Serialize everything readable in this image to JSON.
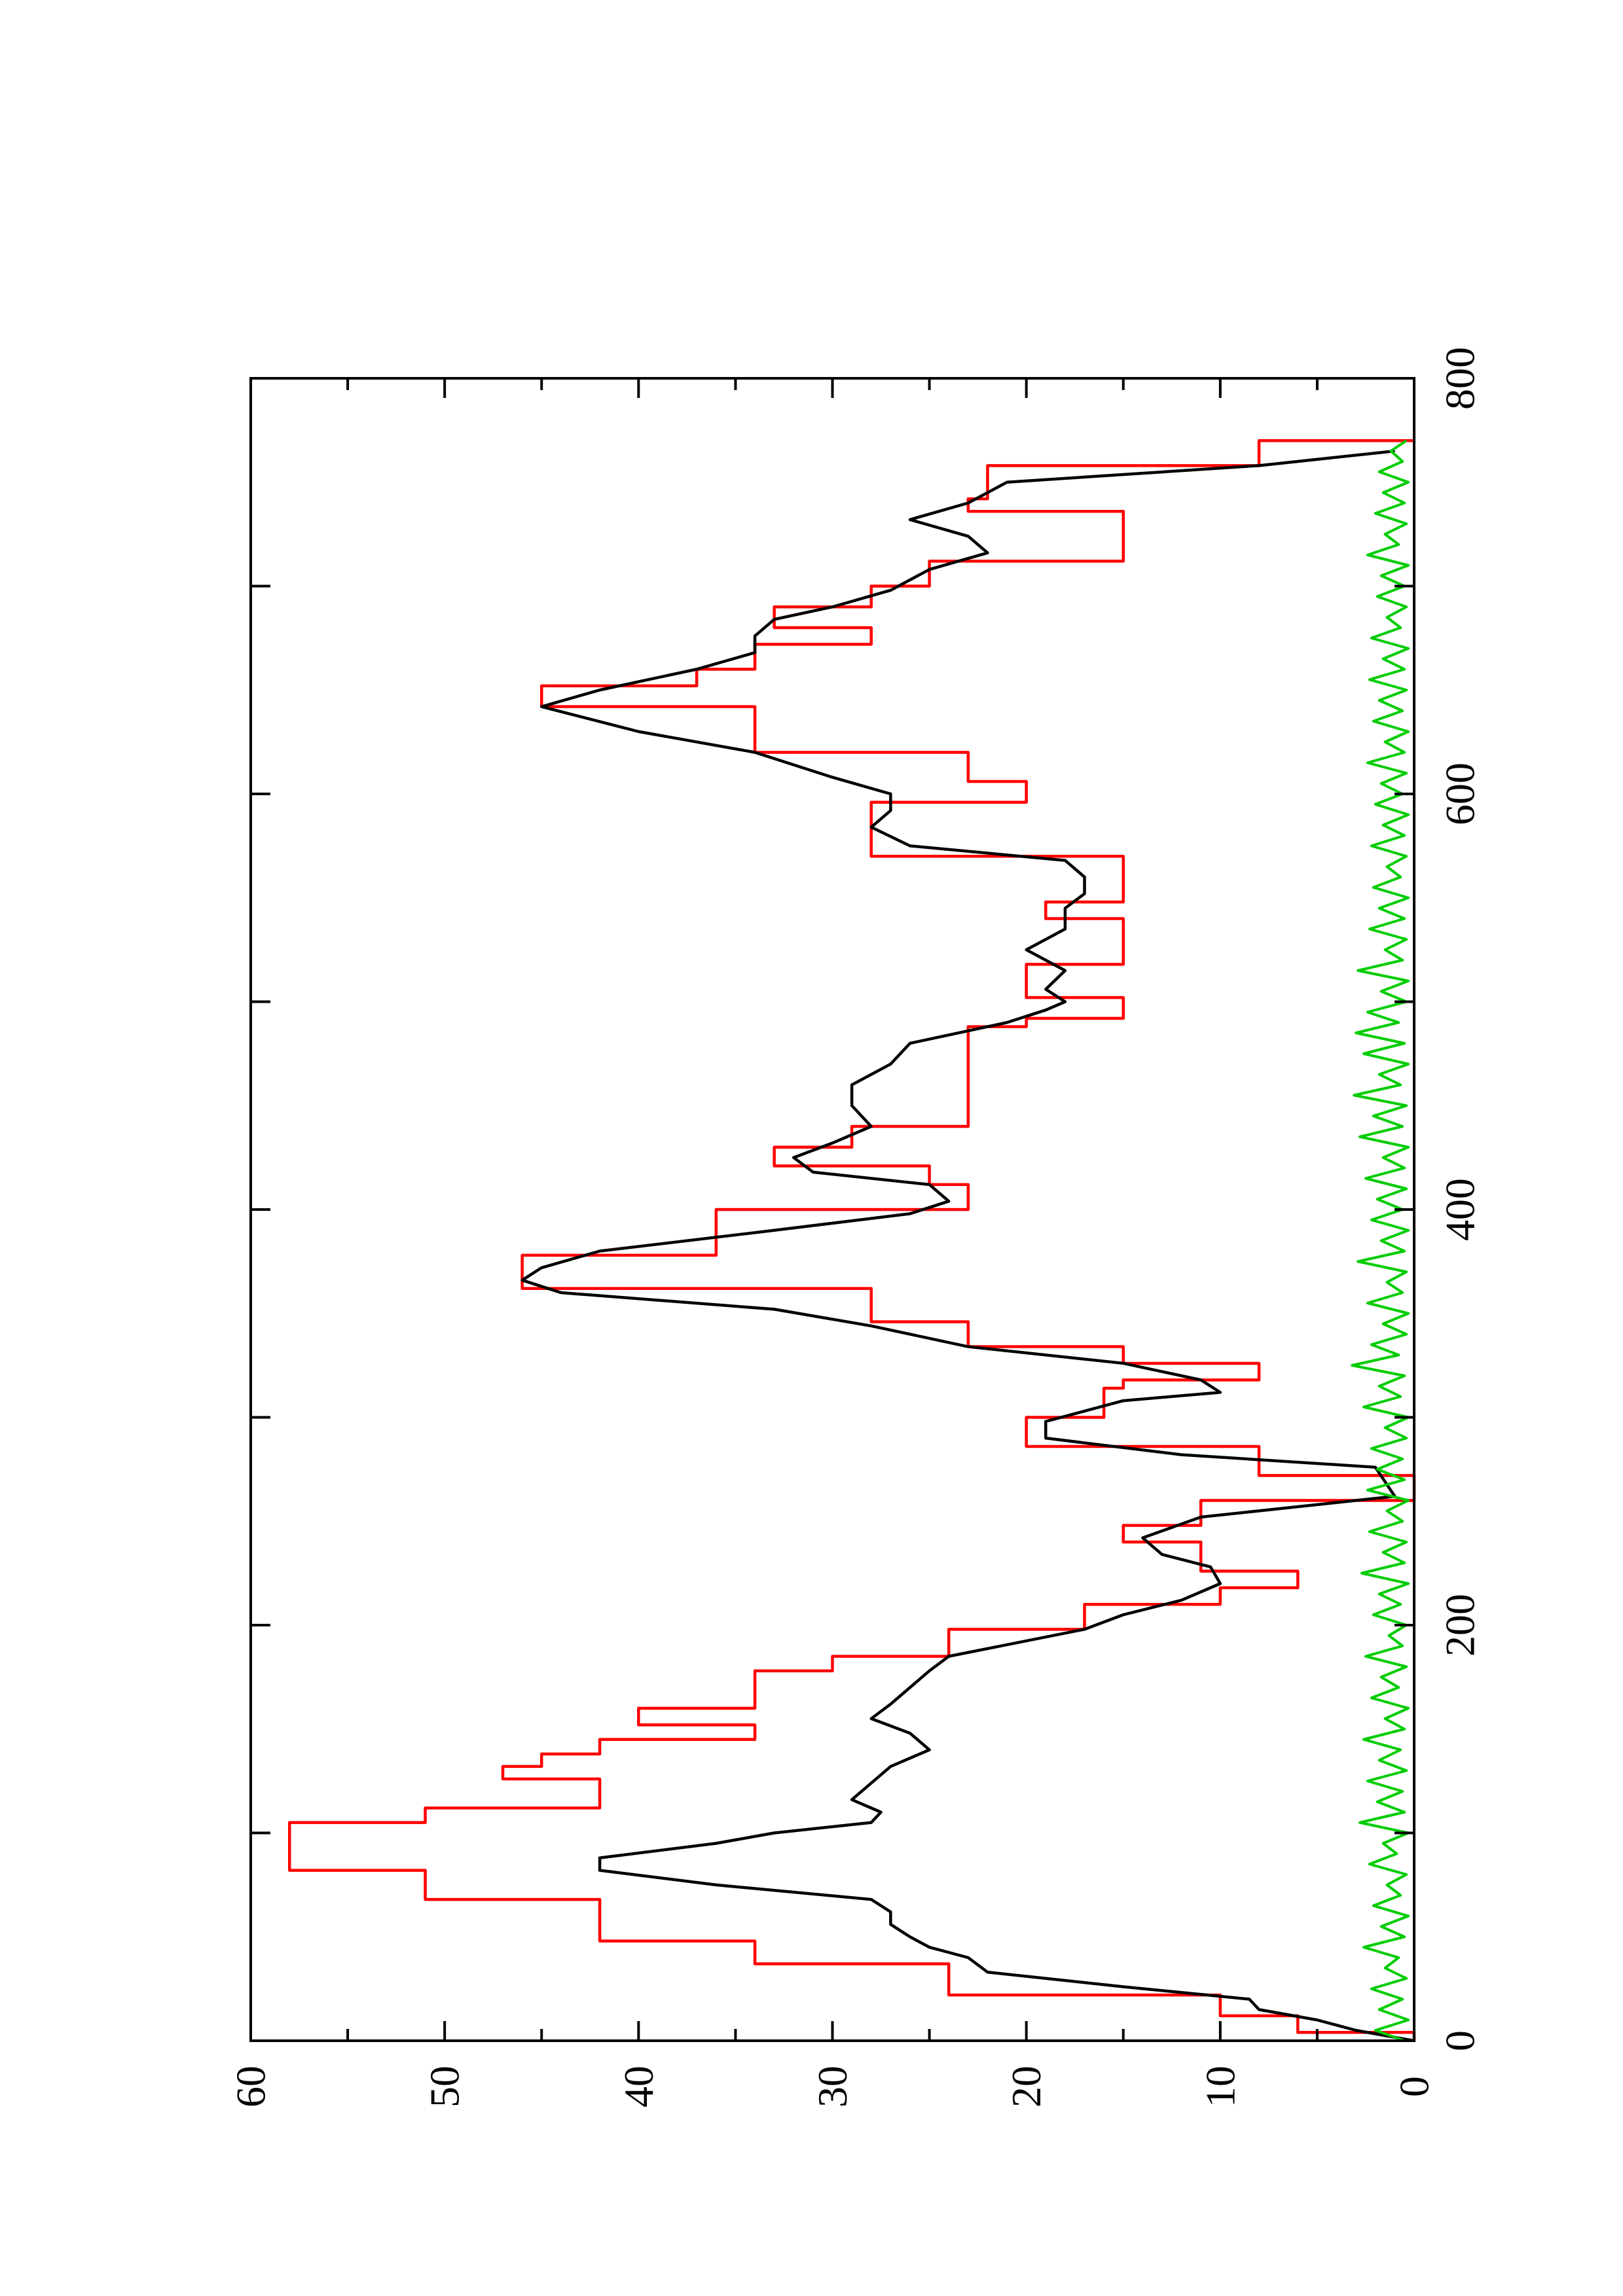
{
  "chart_data": {
    "type": "line",
    "orientation": "rotated-90-counterclockwise",
    "title": "",
    "xlabel": "",
    "ylabel": "",
    "xlim": [
      0,
      800
    ],
    "ylim": [
      0,
      60
    ],
    "x_ticks": [
      "0",
      "200",
      "400",
      "600",
      "800"
    ],
    "y_ticks": [
      "0",
      "10",
      "20",
      "30",
      "40",
      "50",
      "60"
    ],
    "grid": false,
    "legend": "none",
    "series": [
      {
        "color": "#ff0000",
        "style": "step",
        "points": [
          [
            0,
            0
          ],
          [
            4,
            6
          ],
          [
            12,
            10
          ],
          [
            22,
            24
          ],
          [
            37,
            34
          ],
          [
            48,
            42
          ],
          [
            68,
            51
          ],
          [
            82,
            58
          ],
          [
            105,
            51
          ],
          [
            112,
            42
          ],
          [
            126,
            47
          ],
          [
            132,
            45
          ],
          [
            138,
            42
          ],
          [
            145,
            34
          ],
          [
            152,
            40
          ],
          [
            160,
            34
          ],
          [
            178,
            30
          ],
          [
            185,
            24
          ],
          [
            198,
            17
          ],
          [
            210,
            10
          ],
          [
            218,
            6
          ],
          [
            226,
            11
          ],
          [
            240,
            15
          ],
          [
            248,
            11
          ],
          [
            260,
            0
          ],
          [
            272,
            8
          ],
          [
            286,
            20
          ],
          [
            300,
            16
          ],
          [
            314,
            15
          ],
          [
            318,
            8
          ],
          [
            326,
            15
          ],
          [
            334,
            23
          ],
          [
            346,
            28
          ],
          [
            362,
            46
          ],
          [
            378,
            36
          ],
          [
            400,
            23
          ],
          [
            412,
            25
          ],
          [
            421,
            33
          ],
          [
            430,
            29
          ],
          [
            440,
            23
          ],
          [
            488,
            20
          ],
          [
            492,
            15
          ],
          [
            502,
            20
          ],
          [
            518,
            15
          ],
          [
            540,
            19
          ],
          [
            548,
            15
          ],
          [
            570,
            28
          ],
          [
            596,
            20
          ],
          [
            606,
            23
          ],
          [
            620,
            34
          ],
          [
            642,
            45
          ],
          [
            652,
            37
          ],
          [
            660,
            34
          ],
          [
            672,
            28
          ],
          [
            680,
            33
          ],
          [
            690,
            28
          ],
          [
            700,
            25
          ],
          [
            712,
            15
          ],
          [
            736,
            23
          ],
          [
            742,
            22
          ],
          [
            758,
            8
          ],
          [
            770,
            0
          ]
        ]
      },
      {
        "color": "#000000",
        "style": "line",
        "points": [
          [
            0,
            0
          ],
          [
            5,
            3
          ],
          [
            10,
            5
          ],
          [
            15,
            8
          ],
          [
            20,
            8.5
          ],
          [
            26,
            15
          ],
          [
            33,
            22
          ],
          [
            40,
            23
          ],
          [
            45,
            25
          ],
          [
            50,
            26
          ],
          [
            56,
            27
          ],
          [
            62,
            27
          ],
          [
            68,
            28
          ],
          [
            75,
            36
          ],
          [
            82,
            42
          ],
          [
            88,
            42
          ],
          [
            95,
            36
          ],
          [
            100,
            33
          ],
          [
            105,
            28
          ],
          [
            110,
            27.5
          ],
          [
            116,
            29
          ],
          [
            124,
            28
          ],
          [
            132,
            27
          ],
          [
            140,
            25
          ],
          [
            148,
            26
          ],
          [
            155,
            28
          ],
          [
            162,
            27
          ],
          [
            170,
            26
          ],
          [
            178,
            25
          ],
          [
            185,
            24
          ],
          [
            198,
            17
          ],
          [
            205,
            15
          ],
          [
            212,
            12
          ],
          [
            220,
            10
          ],
          [
            228,
            10.5
          ],
          [
            234,
            13
          ],
          [
            242,
            14
          ],
          [
            252,
            11
          ],
          [
            262,
            1
          ],
          [
            276,
            2
          ],
          [
            282,
            12
          ],
          [
            290,
            19
          ],
          [
            298,
            19
          ],
          [
            308,
            15
          ],
          [
            312,
            10
          ],
          [
            318,
            11
          ],
          [
            326,
            15
          ],
          [
            334,
            23
          ],
          [
            344,
            28
          ],
          [
            352,
            33
          ],
          [
            360,
            44
          ],
          [
            366,
            46
          ],
          [
            372,
            45
          ],
          [
            380,
            42
          ],
          [
            390,
            33
          ],
          [
            398,
            26
          ],
          [
            404,
            24
          ],
          [
            412,
            25
          ],
          [
            418,
            31
          ],
          [
            425,
            32
          ],
          [
            432,
            30
          ],
          [
            440,
            28
          ],
          [
            450,
            29
          ],
          [
            460,
            29
          ],
          [
            470,
            27
          ],
          [
            480,
            26
          ],
          [
            490,
            21
          ],
          [
            496,
            19
          ],
          [
            500,
            18
          ],
          [
            506,
            19
          ],
          [
            515,
            18
          ],
          [
            525,
            20
          ],
          [
            535,
            18
          ],
          [
            545,
            18
          ],
          [
            552,
            17
          ],
          [
            560,
            17
          ],
          [
            568,
            18
          ],
          [
            575,
            26
          ],
          [
            584,
            28
          ],
          [
            592,
            27
          ],
          [
            600,
            27
          ],
          [
            608,
            30
          ],
          [
            620,
            34
          ],
          [
            630,
            40
          ],
          [
            642,
            45
          ],
          [
            650,
            42
          ],
          [
            660,
            37
          ],
          [
            668,
            34
          ],
          [
            676,
            34
          ],
          [
            684,
            33
          ],
          [
            690,
            30
          ],
          [
            698,
            27
          ],
          [
            708,
            25
          ],
          [
            716,
            22
          ],
          [
            724,
            23
          ],
          [
            732,
            26
          ],
          [
            740,
            23
          ],
          [
            750,
            21
          ],
          [
            758,
            8
          ],
          [
            765,
            1
          ]
        ]
      },
      {
        "color": "#00cc00",
        "style": "noise",
        "points": [
          [
            0,
            0.5
          ],
          [
            5,
            2
          ],
          [
            10,
            0.3
          ],
          [
            15,
            1.8
          ],
          [
            20,
            0.6
          ],
          [
            25,
            2.2
          ],
          [
            30,
            0.4
          ],
          [
            35,
            1.5
          ],
          [
            40,
            0.8
          ],
          [
            45,
            2.6
          ],
          [
            50,
            0.5
          ],
          [
            55,
            1.7
          ],
          [
            60,
            0.3
          ],
          [
            65,
            2.1
          ],
          [
            70,
            0.7
          ],
          [
            75,
            1.4
          ],
          [
            80,
            0.4
          ],
          [
            85,
            2.3
          ],
          [
            90,
            0.9
          ],
          [
            95,
            1.6
          ],
          [
            100,
            0.3
          ],
          [
            105,
            2.8
          ],
          [
            110,
            0.5
          ],
          [
            115,
            1.9
          ],
          [
            120,
            0.6
          ],
          [
            125,
            2.4
          ],
          [
            130,
            0.4
          ],
          [
            135,
            1.8
          ],
          [
            140,
            0.7
          ],
          [
            145,
            2.6
          ],
          [
            150,
            0.5
          ],
          [
            155,
            1.5
          ],
          [
            160,
            0.3
          ],
          [
            165,
            2.2
          ],
          [
            170,
            0.8
          ],
          [
            175,
            1.7
          ],
          [
            180,
            0.4
          ],
          [
            185,
            2.5
          ],
          [
            190,
            0.6
          ],
          [
            195,
            1.3
          ],
          [
            200,
            0.4
          ],
          [
            205,
            2.1
          ],
          [
            210,
            0.7
          ],
          [
            215,
            1.8
          ],
          [
            220,
            0.3
          ],
          [
            225,
            2.7
          ],
          [
            230,
            0.5
          ],
          [
            235,
            1.6
          ],
          [
            240,
            0.4
          ],
          [
            245,
            2.3
          ],
          [
            250,
            0.6
          ],
          [
            255,
            1.4
          ],
          [
            260,
            0.3
          ],
          [
            265,
            2.4
          ],
          [
            270,
            0.5
          ],
          [
            275,
            1.9
          ],
          [
            280,
            0.6
          ],
          [
            285,
            2.2
          ],
          [
            290,
            0.4
          ],
          [
            295,
            1.5
          ],
          [
            300,
            0.3
          ],
          [
            305,
            2.6
          ],
          [
            310,
            0.7
          ],
          [
            315,
            1.8
          ],
          [
            320,
            0.5
          ],
          [
            325,
            3.2
          ],
          [
            330,
            0.8
          ],
          [
            335,
            2.2
          ],
          [
            340,
            0.4
          ],
          [
            345,
            1.6
          ],
          [
            350,
            0.3
          ],
          [
            355,
            2.4
          ],
          [
            360,
            0.6
          ],
          [
            365,
            1.4
          ],
          [
            370,
            0.4
          ],
          [
            375,
            2.9
          ],
          [
            380,
            0.5
          ],
          [
            385,
            1.7
          ],
          [
            390,
            0.3
          ],
          [
            395,
            2.2
          ],
          [
            400,
            0.6
          ],
          [
            405,
            1.9
          ],
          [
            410,
            0.4
          ],
          [
            415,
            2.5
          ],
          [
            420,
            0.5
          ],
          [
            425,
            1.6
          ],
          [
            430,
            0.3
          ],
          [
            435,
            2.8
          ],
          [
            440,
            0.6
          ],
          [
            445,
            2.1
          ],
          [
            450,
            0.4
          ],
          [
            455,
            3.1
          ],
          [
            460,
            0.7
          ],
          [
            465,
            1.8
          ],
          [
            470,
            0.3
          ],
          [
            475,
            2.6
          ],
          [
            480,
            0.5
          ],
          [
            485,
            3.0
          ],
          [
            490,
            0.8
          ],
          [
            495,
            2.4
          ],
          [
            500,
            0.4
          ],
          [
            505,
            1.7
          ],
          [
            510,
            0.3
          ],
          [
            515,
            2.9
          ],
          [
            520,
            0.6
          ],
          [
            525,
            1.5
          ],
          [
            530,
            0.4
          ],
          [
            535,
            2.3
          ],
          [
            540,
            0.5
          ],
          [
            545,
            1.8
          ],
          [
            550,
            0.3
          ],
          [
            555,
            2.1
          ],
          [
            560,
            0.7
          ],
          [
            565,
            1.4
          ],
          [
            570,
            0.4
          ],
          [
            575,
            2.2
          ],
          [
            580,
            0.5
          ],
          [
            585,
            1.6
          ],
          [
            590,
            0.3
          ],
          [
            595,
            2.0
          ],
          [
            600,
            0.6
          ],
          [
            605,
            1.7
          ],
          [
            610,
            0.4
          ],
          [
            615,
            2.4
          ],
          [
            620,
            0.5
          ],
          [
            625,
            1.5
          ],
          [
            630,
            0.3
          ],
          [
            635,
            2.1
          ],
          [
            640,
            0.6
          ],
          [
            645,
            1.8
          ],
          [
            650,
            0.4
          ],
          [
            655,
            2.3
          ],
          [
            660,
            0.5
          ],
          [
            665,
            1.6
          ],
          [
            670,
            0.3
          ],
          [
            675,
            2.2
          ],
          [
            680,
            0.7
          ],
          [
            685,
            1.4
          ],
          [
            690,
            0.4
          ],
          [
            695,
            1.9
          ],
          [
            700,
            0.5
          ],
          [
            705,
            1.7
          ],
          [
            710,
            0.3
          ],
          [
            715,
            2.4
          ],
          [
            720,
            0.8
          ],
          [
            725,
            1.5
          ],
          [
            730,
            0.4
          ],
          [
            735,
            2.0
          ],
          [
            740,
            0.5
          ],
          [
            745,
            1.6
          ],
          [
            750,
            0.3
          ],
          [
            755,
            1.8
          ],
          [
            760,
            0.6
          ],
          [
            765,
            1.2
          ],
          [
            770,
            0.4
          ]
        ]
      }
    ]
  }
}
